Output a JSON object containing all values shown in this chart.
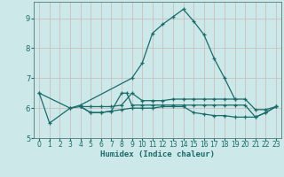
{
  "xlabel": "Humidex (Indice chaleur)",
  "bg_color": "#cce8e8",
  "grid_color": "#c8b8b8",
  "line_color": "#1a6b6b",
  "xlim": [
    -0.5,
    23.5
  ],
  "ylim": [
    5.0,
    9.55
  ],
  "yticks": [
    5,
    6,
    7,
    8,
    9
  ],
  "xticks": [
    0,
    1,
    2,
    3,
    4,
    5,
    6,
    7,
    8,
    9,
    10,
    11,
    12,
    13,
    14,
    15,
    16,
    17,
    18,
    19,
    20,
    21,
    22,
    23
  ],
  "series": [
    [
      0,
      6.5,
      1,
      5.5,
      3,
      6.0,
      4,
      6.1,
      9,
      7.0,
      10,
      7.5,
      11,
      8.5,
      12,
      8.8,
      13,
      9.05,
      14,
      9.3,
      15,
      8.9,
      16,
      8.45,
      17,
      7.65,
      18,
      7.0,
      19,
      6.3
    ],
    [
      0,
      6.5,
      3,
      6.0,
      4,
      6.05,
      5,
      6.05,
      6,
      6.05,
      7,
      6.05,
      8,
      6.1,
      9,
      6.5,
      10,
      6.25,
      11,
      6.25,
      12,
      6.25,
      13,
      6.3,
      14,
      6.3,
      15,
      6.3,
      16,
      6.3,
      17,
      6.3,
      18,
      6.3,
      19,
      6.3,
      20,
      6.3,
      21,
      5.95,
      22,
      5.95,
      23,
      6.05
    ],
    [
      4,
      6.05,
      5,
      5.85,
      6,
      5.85,
      7,
      5.9,
      8,
      5.95,
      9,
      6.0,
      10,
      6.0,
      11,
      6.0,
      12,
      6.05,
      13,
      6.05,
      14,
      6.05,
      15,
      5.85,
      16,
      5.8,
      17,
      5.75,
      18,
      5.75,
      19,
      5.7,
      20,
      5.7,
      21,
      5.7,
      22,
      5.85,
      23,
      6.05
    ],
    [
      4,
      6.05,
      5,
      5.85,
      6,
      5.85,
      7,
      5.9,
      8,
      6.5,
      8.5,
      6.5,
      9,
      6.1,
      10,
      6.1,
      11,
      6.1,
      12,
      6.1,
      13,
      6.1,
      14,
      6.1,
      15,
      6.1,
      16,
      6.1,
      17,
      6.1,
      18,
      6.1,
      19,
      6.1,
      20,
      6.1,
      21,
      5.7,
      22,
      5.85,
      23,
      6.05
    ]
  ]
}
